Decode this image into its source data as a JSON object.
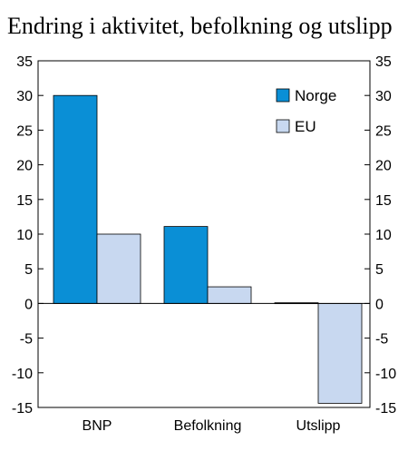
{
  "chart_data": {
    "type": "bar",
    "title": "Endring i aktivitet, befolkning og utslipp",
    "categories": [
      "BNP",
      "Befolkning",
      "Utslipp"
    ],
    "series": [
      {
        "name": "Norge",
        "values": [
          30,
          11.1,
          0.1
        ],
        "color": "#0a8fd6"
      },
      {
        "name": "EU",
        "values": [
          10,
          2.4,
          -14.4
        ],
        "color": "#c8d8f0"
      }
    ],
    "ylim": [
      -15,
      35
    ],
    "yticks": [
      -15,
      -10,
      -5,
      0,
      5,
      10,
      15,
      20,
      25,
      30,
      35
    ],
    "dual_y_axis": true,
    "legend_position": "top-right",
    "grid": false
  }
}
